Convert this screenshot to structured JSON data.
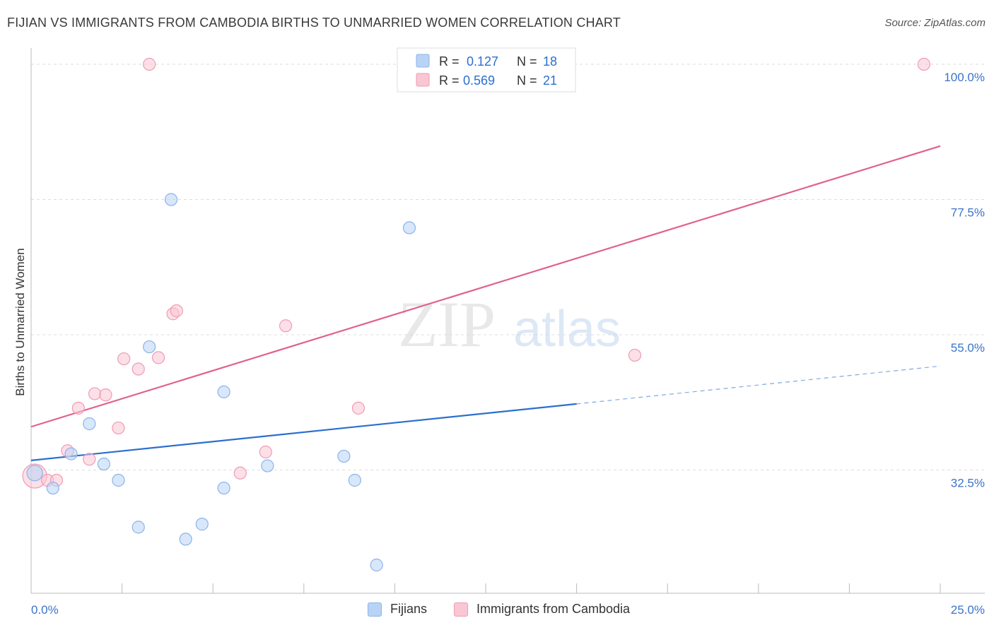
{
  "title": "FIJIAN VS IMMIGRANTS FROM CAMBODIA BIRTHS TO UNMARRIED WOMEN CORRELATION CHART",
  "source": "Source: ZipAtlas.com",
  "watermark": {
    "zip": "ZIP",
    "atlas": "atlas"
  },
  "colors": {
    "fijians_fill": "#b8d3f5",
    "fijians_stroke": "#8bb4e8",
    "fijians_line": "#2b6fcf",
    "cambodia_fill": "#f9c6d4",
    "cambodia_stroke": "#f19ab4",
    "cambodia_line": "#e0628c",
    "axis_text": "#3a74c9",
    "grid": "#dddddd"
  },
  "legend_top": {
    "rows": [
      {
        "r_label": "R =",
        "r_value": "0.127",
        "n_label": "N =",
        "n_value": "18"
      },
      {
        "r_label": "R =",
        "r_value": "0.569",
        "n_label": "N =",
        "n_value": "21"
      }
    ]
  },
  "legend_bottom": {
    "fijians": "Fijians",
    "cambodia": "Immigrants from Cambodia"
  },
  "chart_data": {
    "type": "scatter",
    "xlabel": "",
    "ylabel": "Births to Unmarried Women",
    "xlim": [
      0,
      25
    ],
    "ylim": [
      12,
      102
    ],
    "x_tick_labels": [
      "0.0%",
      "25.0%"
    ],
    "y_ticks": [
      32.5,
      55.0,
      77.5,
      100.0
    ],
    "y_tick_labels": [
      "32.5%",
      "55.0%",
      "77.5%",
      "100.0%"
    ],
    "grid": true,
    "series": [
      {
        "name": "Fijians",
        "points": [
          {
            "x": 0.1,
            "y": 32.0
          },
          {
            "x": 0.6,
            "y": 29.5
          },
          {
            "x": 1.1,
            "y": 35.2
          },
          {
            "x": 1.6,
            "y": 40.2
          },
          {
            "x": 2.0,
            "y": 33.5
          },
          {
            "x": 2.4,
            "y": 30.8
          },
          {
            "x": 2.95,
            "y": 23.0
          },
          {
            "x": 3.25,
            "y": 53.0
          },
          {
            "x": 3.85,
            "y": 77.5
          },
          {
            "x": 4.25,
            "y": 21.0
          },
          {
            "x": 4.7,
            "y": 23.5
          },
          {
            "x": 5.3,
            "y": 29.5
          },
          {
            "x": 5.3,
            "y": 45.5
          },
          {
            "x": 6.5,
            "y": 33.2
          },
          {
            "x": 8.6,
            "y": 34.8
          },
          {
            "x": 8.9,
            "y": 30.8
          },
          {
            "x": 9.5,
            "y": 16.7
          },
          {
            "x": 10.4,
            "y": 72.8
          }
        ],
        "trend": {
          "x0": 0,
          "y0": 34.1,
          "x1": 15.0,
          "y1": 43.5,
          "x_dash_end": 25.0,
          "y_dash_end": 49.8
        }
      },
      {
        "name": "Immigrants from Cambodia",
        "points": [
          {
            "x": 0.1,
            "y": 31.5
          },
          {
            "x": 0.45,
            "y": 30.8
          },
          {
            "x": 0.7,
            "y": 30.8
          },
          {
            "x": 1.0,
            "y": 35.7
          },
          {
            "x": 1.3,
            "y": 42.8
          },
          {
            "x": 1.6,
            "y": 34.3
          },
          {
            "x": 1.75,
            "y": 45.2
          },
          {
            "x": 2.05,
            "y": 45.0
          },
          {
            "x": 2.4,
            "y": 39.5
          },
          {
            "x": 2.55,
            "y": 51.0
          },
          {
            "x": 2.95,
            "y": 49.3
          },
          {
            "x": 3.25,
            "y": 100.0
          },
          {
            "x": 3.5,
            "y": 51.2
          },
          {
            "x": 3.9,
            "y": 58.5
          },
          {
            "x": 4.0,
            "y": 59.0
          },
          {
            "x": 5.75,
            "y": 32.0
          },
          {
            "x": 6.45,
            "y": 35.5
          },
          {
            "x": 7.0,
            "y": 56.5
          },
          {
            "x": 9.0,
            "y": 42.8
          },
          {
            "x": 16.6,
            "y": 51.6
          },
          {
            "x": 24.55,
            "y": 100.0
          }
        ],
        "trend": {
          "x0": 0,
          "y0": 39.7,
          "x1": 25.0,
          "y1": 86.4
        }
      }
    ]
  }
}
